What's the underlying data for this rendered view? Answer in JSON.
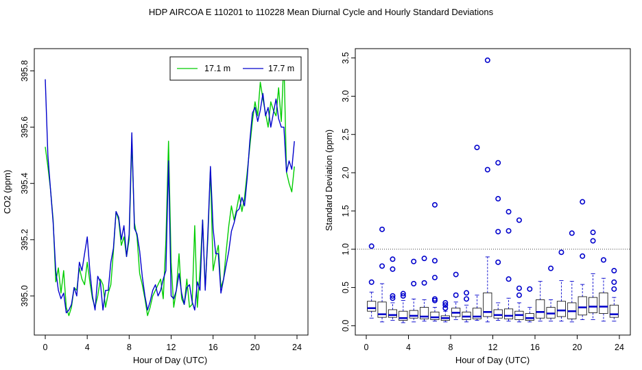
{
  "figure": {
    "title": "HDP   AIRCOA E   110201 to 110228   Mean Diurnal Cycle and Hourly Standard Deviations"
  },
  "colors": {
    "green": "#00cc00",
    "blue": "#0000cc",
    "black": "#000000",
    "ref_line": "#000000"
  },
  "chart_data": [
    {
      "type": "line",
      "title": "",
      "xlabel": "Hour of Day (UTC)",
      "ylabel": "CO2 (ppm)",
      "xlim": [
        0,
        24
      ],
      "ylim": [
        394.9,
        395.84
      ],
      "xticks": [
        0,
        4,
        8,
        12,
        16,
        20,
        24
      ],
      "yticks": [
        395.0,
        395.2,
        395.4,
        395.6,
        395.8
      ],
      "xtick_labels": [
        "0",
        "4",
        "8",
        "12",
        "16",
        "20",
        "24"
      ],
      "ytick_labels": [
        "395.0",
        "395.2",
        "395.4",
        "395.6",
        "395.8"
      ],
      "legend": {
        "placement": "top-right",
        "entries": [
          "17.1 m",
          "17.7 m"
        ]
      },
      "series": [
        {
          "name": "17.1 m",
          "color": "#00cc00",
          "x": [
            0,
            0.25,
            0.5,
            0.75,
            1,
            1.25,
            1.5,
            1.75,
            2,
            2.25,
            2.5,
            2.75,
            3,
            3.25,
            3.5,
            3.75,
            4,
            4.25,
            4.5,
            4.75,
            5,
            5.25,
            5.5,
            5.75,
            6,
            6.25,
            6.5,
            6.75,
            7,
            7.25,
            7.5,
            7.75,
            8,
            8.25,
            8.5,
            8.75,
            9,
            9.25,
            9.5,
            9.75,
            10,
            10.25,
            10.5,
            10.75,
            11,
            11.25,
            11.5,
            11.75,
            12,
            12.25,
            12.5,
            12.75,
            13,
            13.25,
            13.5,
            13.75,
            14,
            14.25,
            14.5,
            14.75,
            15,
            15.25,
            15.5,
            15.75,
            16,
            16.25,
            16.5,
            16.75,
            17,
            17.25,
            17.5,
            17.75,
            18,
            18.25,
            18.5,
            18.75,
            19,
            19.25,
            19.5,
            19.75,
            20,
            20.25,
            20.5,
            20.75,
            21,
            21.25,
            21.5,
            21.75,
            22,
            22.25,
            22.5,
            22.75,
            23,
            23.25,
            23.5,
            23.75
          ],
          "values": [
            395.53,
            395.46,
            395.38,
            395.27,
            395.05,
            395.1,
            395.01,
            395.09,
            394.96,
            394.93,
            394.96,
            395.03,
            395.02,
            395.1,
            395.06,
            395.04,
            395.12,
            395.05,
            394.99,
            394.96,
            395.0,
            395.06,
            395.04,
            394.96,
            395.01,
            395.04,
            395.16,
            395.3,
            395.27,
            395.18,
            395.21,
            395.14,
            395.2,
            395.55,
            395.26,
            395.21,
            395.08,
            395.04,
            394.99,
            394.93,
            394.96,
            395.0,
            395.02,
            395.04,
            395.06,
            394.99,
            395.2,
            395.55,
            395.12,
            394.96,
            395.02,
            395.15,
            394.99,
            394.97,
            395.06,
            394.96,
            394.97,
            395.25,
            394.96,
            395.09,
            395.27,
            395.03,
            395.2,
            395.45,
            395.09,
            395.14,
            395.18,
            395.03,
            395.06,
            395.16,
            395.25,
            395.32,
            395.27,
            395.31,
            395.36,
            395.3,
            395.35,
            395.44,
            395.53,
            395.62,
            395.69,
            395.64,
            395.76,
            395.7,
            395.65,
            395.6,
            395.69,
            395.66,
            395.64,
            395.74,
            395.62,
            395.84,
            395.44,
            395.4,
            395.37,
            395.46
          ]
        },
        {
          "name": "17.7 m",
          "color": "#0000cc",
          "x": [
            0,
            0.25,
            0.5,
            0.75,
            1,
            1.25,
            1.5,
            1.75,
            2,
            2.25,
            2.5,
            2.75,
            3,
            3.25,
            3.5,
            3.75,
            4,
            4.25,
            4.5,
            4.75,
            5,
            5.25,
            5.5,
            5.75,
            6,
            6.25,
            6.5,
            6.75,
            7,
            7.25,
            7.5,
            7.75,
            8,
            8.25,
            8.5,
            8.75,
            9,
            9.25,
            9.5,
            9.75,
            10,
            10.25,
            10.5,
            10.75,
            11,
            11.25,
            11.5,
            11.75,
            12,
            12.25,
            12.5,
            12.75,
            13,
            13.25,
            13.5,
            13.75,
            14,
            14.25,
            14.5,
            14.75,
            15,
            15.25,
            15.5,
            15.75,
            16,
            16.25,
            16.5,
            16.75,
            17,
            17.25,
            17.5,
            17.75,
            18,
            18.25,
            18.5,
            18.75,
            19,
            19.25,
            19.5,
            19.75,
            20,
            20.25,
            20.5,
            20.75,
            21,
            21.25,
            21.5,
            21.75,
            22,
            22.25,
            22.5,
            22.75,
            23,
            23.25,
            23.5,
            23.75
          ],
          "values": [
            395.77,
            395.5,
            395.38,
            395.26,
            395.09,
            395.02,
            394.99,
            395.01,
            394.94,
            394.95,
            394.97,
            395.03,
            395.0,
            395.12,
            395.09,
            395.15,
            395.21,
            395.09,
            395.0,
            394.95,
            395.07,
            395.05,
            394.95,
            395.02,
            395.02,
            395.12,
            395.17,
            395.3,
            395.28,
            395.2,
            395.25,
            395.14,
            395.22,
            395.58,
            395.24,
            395.22,
            395.16,
            395.07,
            395.0,
            394.95,
            394.98,
            395.02,
            395.04,
            395.0,
            395.02,
            395.06,
            395.09,
            395.48,
            395.0,
            394.99,
            395.02,
            395.08,
            395.01,
            394.97,
            395.03,
            395.04,
            394.98,
            394.95,
            395.05,
            395.02,
            395.27,
            395.02,
            395.22,
            395.46,
            395.24,
            395.15,
            395.15,
            395.01,
            395.06,
            395.11,
            395.16,
            395.23,
            395.26,
            395.3,
            395.31,
            395.35,
            395.32,
            395.42,
            395.55,
            395.65,
            395.67,
            395.62,
            395.66,
            395.72,
            395.64,
            395.67,
            395.6,
            395.65,
            395.7,
            395.63,
            395.6,
            395.6,
            395.44,
            395.48,
            395.45,
            395.55
          ]
        }
      ]
    },
    {
      "type": "box",
      "title": "",
      "xlabel": "Hour of Day (UTC)",
      "ylabel": "Standard Deviation (ppm)",
      "xlim": [
        0,
        24
      ],
      "ylim": [
        -0.05,
        3.55
      ],
      "xticks": [
        0,
        4,
        8,
        12,
        16,
        20,
        24
      ],
      "yticks": [
        0.0,
        0.5,
        1.0,
        1.5,
        2.0,
        2.5,
        3.0,
        3.5
      ],
      "xtick_labels": [
        "0",
        "4",
        "8",
        "12",
        "16",
        "20",
        "24"
      ],
      "ytick_labels": [
        "0.0",
        "0.5",
        "1.0",
        "1.5",
        "2.0",
        "2.5",
        "3.0",
        "3.5"
      ],
      "reference_line": 1.0,
      "box_width_hours": 0.8,
      "boxes": [
        {
          "x": 0.5,
          "wlo": 0.1,
          "q1": 0.19,
          "med": 0.23,
          "q3": 0.32,
          "whi": 0.44,
          "outliers": [
            0.57,
            1.04
          ]
        },
        {
          "x": 1.5,
          "wlo": 0.05,
          "q1": 0.11,
          "med": 0.15,
          "q3": 0.31,
          "whi": 0.55,
          "outliers": [
            0.78,
            1.26
          ]
        },
        {
          "x": 2.5,
          "wlo": 0.07,
          "q1": 0.11,
          "med": 0.14,
          "q3": 0.21,
          "whi": 0.3,
          "outliers": [
            0.36,
            0.39,
            0.74,
            0.87
          ]
        },
        {
          "x": 3.5,
          "wlo": 0.04,
          "q1": 0.07,
          "med": 0.1,
          "q3": 0.19,
          "whi": 0.33,
          "outliers": [
            0.39,
            0.42
          ]
        },
        {
          "x": 4.5,
          "wlo": 0.05,
          "q1": 0.1,
          "med": 0.13,
          "q3": 0.2,
          "whi": 0.35,
          "outliers": [
            0.55,
            0.84
          ]
        },
        {
          "x": 5.5,
          "wlo": 0.06,
          "q1": 0.09,
          "med": 0.12,
          "q3": 0.24,
          "whi": 0.34,
          "outliers": [
            0.56,
            0.88
          ]
        },
        {
          "x": 6.5,
          "wlo": 0.06,
          "q1": 0.08,
          "med": 0.11,
          "q3": 0.18,
          "whi": 0.24,
          "outliers": [
            0.33,
            0.35,
            0.63,
            0.85,
            1.58
          ]
        },
        {
          "x": 7.5,
          "wlo": 0.05,
          "q1": 0.07,
          "med": 0.1,
          "q3": 0.13,
          "whi": 0.19,
          "outliers": [
            0.23,
            0.27,
            0.3
          ]
        },
        {
          "x": 8.5,
          "wlo": 0.08,
          "q1": 0.12,
          "med": 0.17,
          "q3": 0.23,
          "whi": 0.31,
          "outliers": [
            0.4,
            0.67
          ]
        },
        {
          "x": 9.5,
          "wlo": 0.05,
          "q1": 0.08,
          "med": 0.12,
          "q3": 0.18,
          "whi": 0.27,
          "outliers": [
            0.35,
            0.43
          ]
        },
        {
          "x": 10.5,
          "wlo": 0.07,
          "q1": 0.09,
          "med": 0.12,
          "q3": 0.23,
          "whi": 0.4,
          "outliers": [
            2.33
          ]
        },
        {
          "x": 11.5,
          "wlo": 0.05,
          "q1": 0.12,
          "med": 0.18,
          "q3": 0.43,
          "whi": 0.9,
          "outliers": [
            2.04,
            3.47
          ]
        },
        {
          "x": 12.5,
          "wlo": 0.07,
          "q1": 0.1,
          "med": 0.14,
          "q3": 0.21,
          "whi": 0.3,
          "outliers": [
            0.83,
            1.23,
            1.66,
            2.13
          ]
        },
        {
          "x": 13.5,
          "wlo": 0.06,
          "q1": 0.09,
          "med": 0.13,
          "q3": 0.22,
          "whi": 0.36,
          "outliers": [
            0.61,
            1.24,
            1.49
          ]
        },
        {
          "x": 14.5,
          "wlo": 0.05,
          "q1": 0.08,
          "med": 0.14,
          "q3": 0.19,
          "whi": 0.3,
          "outliers": [
            0.4,
            0.49,
            1.38
          ]
        },
        {
          "x": 15.5,
          "wlo": 0.05,
          "q1": 0.07,
          "med": 0.1,
          "q3": 0.16,
          "whi": 0.24,
          "outliers": [
            0.48
          ]
        },
        {
          "x": 16.5,
          "wlo": 0.06,
          "q1": 0.1,
          "med": 0.18,
          "q3": 0.34,
          "whi": 0.58,
          "outliers": []
        },
        {
          "x": 17.5,
          "wlo": 0.06,
          "q1": 0.1,
          "med": 0.16,
          "q3": 0.24,
          "whi": 0.34,
          "outliers": [
            0.75
          ]
        },
        {
          "x": 18.5,
          "wlo": 0.06,
          "q1": 0.12,
          "med": 0.2,
          "q3": 0.32,
          "whi": 0.59,
          "outliers": [
            0.96
          ]
        },
        {
          "x": 19.5,
          "wlo": 0.05,
          "q1": 0.09,
          "med": 0.19,
          "q3": 0.3,
          "whi": 0.58,
          "outliers": [
            1.21
          ]
        },
        {
          "x": 20.5,
          "wlo": 0.08,
          "q1": 0.14,
          "med": 0.24,
          "q3": 0.38,
          "whi": 0.54,
          "outliers": [
            0.91,
            1.62
          ]
        },
        {
          "x": 21.5,
          "wlo": 0.08,
          "q1": 0.17,
          "med": 0.25,
          "q3": 0.37,
          "whi": 0.68,
          "outliers": [
            1.11,
            1.22
          ]
        },
        {
          "x": 22.5,
          "wlo": 0.06,
          "q1": 0.16,
          "med": 0.25,
          "q3": 0.43,
          "whi": 0.62,
          "outliers": [
            0.86
          ]
        },
        {
          "x": 23.5,
          "wlo": 0.06,
          "q1": 0.11,
          "med": 0.15,
          "q3": 0.27,
          "whi": 0.37,
          "outliers": [
            0.48,
            0.57,
            0.72
          ]
        }
      ]
    }
  ]
}
